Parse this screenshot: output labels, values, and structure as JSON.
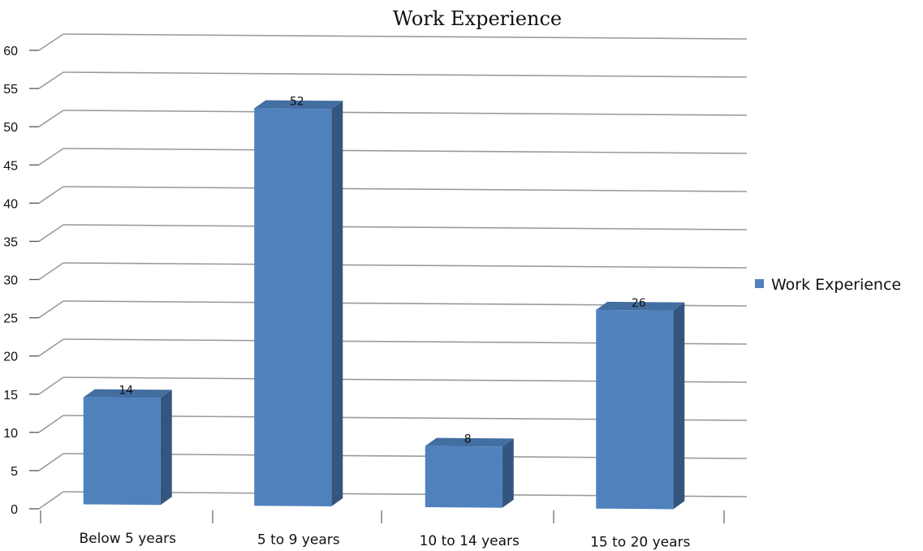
{
  "chart_data": {
    "type": "bar",
    "title": "Work Experience",
    "categories": [
      "Below 5 years",
      "5 to 9 years",
      "10 to 14 years",
      "15 to 20 years"
    ],
    "series": [
      {
        "name": "Work Experience",
        "values": [
          14,
          52,
          8,
          26
        ],
        "color": "#4f81bd"
      }
    ],
    "ylim": [
      0,
      60
    ],
    "yticks": [
      0,
      5,
      10,
      15,
      20,
      25,
      30,
      35,
      40,
      45,
      50,
      55,
      60
    ],
    "ytick_labels": [
      "0",
      "5",
      "10",
      "15",
      "20",
      "25",
      "30",
      "35",
      "40",
      "45",
      "50",
      "55",
      "60"
    ],
    "grid": true,
    "legend_position": "right",
    "style": "3d-column"
  }
}
